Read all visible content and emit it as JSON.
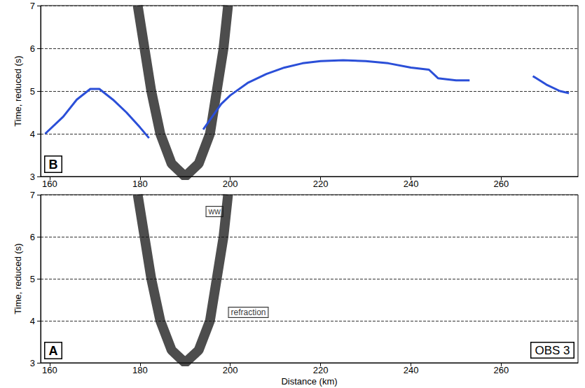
{
  "chart_data": [
    {
      "type": "line",
      "panel_label": "B",
      "y_label": "Time, reduced (s)",
      "xlim": [
        158,
        277
      ],
      "xticks": [
        160,
        180,
        200,
        220,
        240,
        260
      ],
      "ylim": [
        3,
        7
      ],
      "yticks": [
        3,
        4,
        5,
        6,
        7
      ],
      "grid": true,
      "series": [
        {
          "color": "#111111",
          "line_style": "solid",
          "marker": "none",
          "x": [
            179.5,
            181,
            182.5,
            184.5,
            187,
            190,
            193,
            195.5,
            197,
            198.5,
            199.5
          ],
          "values": [
            7,
            6,
            5,
            4,
            3.3,
            3.0,
            3.3,
            4,
            5,
            6,
            7
          ]
        },
        {
          "color": "#2b4fd8",
          "line_style": "solid",
          "marker": "none",
          "x": [
            159,
            163,
            166,
            169,
            171,
            174,
            177,
            180,
            182,
            null,
            194,
            196,
            198,
            200,
            204,
            208,
            212,
            216,
            220,
            225,
            230,
            235,
            240,
            244,
            246,
            250,
            253,
            null,
            267,
            270,
            273,
            275
          ],
          "values": [
            4.0,
            4.4,
            4.8,
            5.05,
            5.05,
            4.8,
            4.5,
            4.15,
            3.9,
            null,
            4.1,
            4.4,
            4.7,
            4.9,
            5.2,
            5.4,
            5.55,
            5.65,
            5.7,
            5.72,
            5.7,
            5.65,
            5.55,
            5.5,
            5.3,
            5.25,
            5.25,
            null,
            5.35,
            5.15,
            5.0,
            4.95
          ]
        }
      ]
    },
    {
      "type": "line",
      "panel_label": "A",
      "y_label": "Time, reduced (s)",
      "x_label": "Distance (km)",
      "box_label": "OBS 3",
      "xlim": [
        158,
        277
      ],
      "xticks": [
        160,
        180,
        200,
        220,
        240,
        260
      ],
      "ylim": [
        3,
        7
      ],
      "yticks": [
        3,
        4,
        5,
        6,
        7
      ],
      "grid": true,
      "annotations": [
        {
          "text": "ww",
          "x": 196.5,
          "y": 6.6
        },
        {
          "text": "refraction",
          "x": 204,
          "y": 4.2
        }
      ],
      "series": [
        {
          "color": "#111111",
          "line_style": "solid",
          "marker": "none",
          "x": [
            179.5,
            181,
            182.5,
            184.5,
            187,
            190,
            193,
            195.5,
            197,
            198.5,
            199.5
          ],
          "values": [
            7,
            6,
            5,
            4,
            3.3,
            3.0,
            3.3,
            4,
            5,
            6,
            7
          ]
        }
      ]
    }
  ]
}
